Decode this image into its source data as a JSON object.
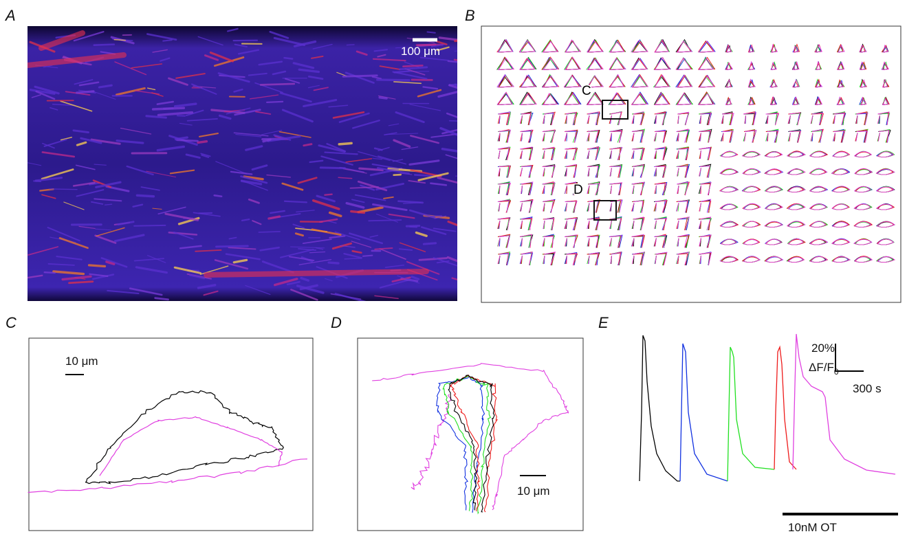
{
  "panels": [
    {
      "label": "A",
      "scale_bar": "100 μm"
    },
    {
      "label": "B",
      "markers": [
        "C",
        "D"
      ]
    },
    {
      "label": "C",
      "scale_bar": "10 μm"
    },
    {
      "label": "D",
      "scale_bar": "10 μm"
    },
    {
      "label": "E",
      "scale_y": "20%",
      "scale_y_unit": "ΔF/F",
      "scale_y_unit_sub": "0",
      "scale_x": "300 s",
      "bar": "10nM OT"
    }
  ]
}
